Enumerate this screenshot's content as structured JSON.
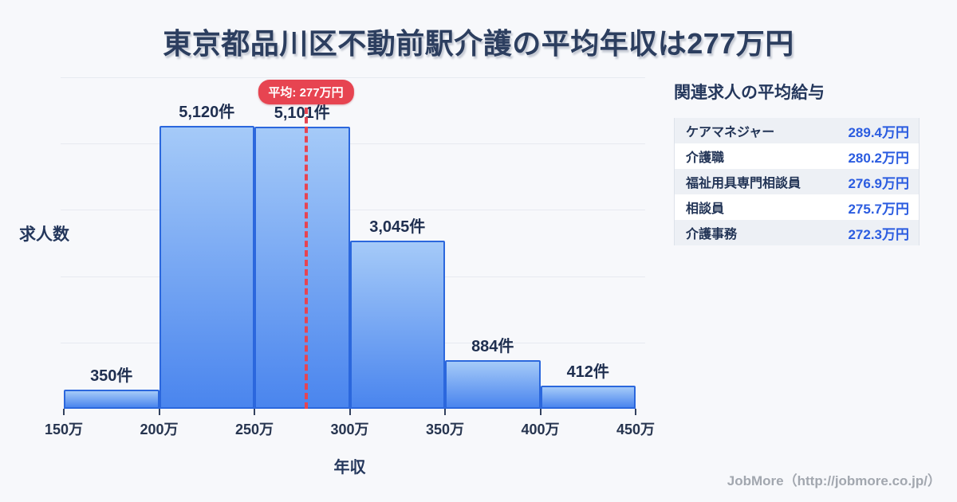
{
  "title": "東京都品川区不動前駅介護の平均年収は277万円",
  "colors": {
    "background": "#f7f8fb",
    "navy_text": "#24375c",
    "bar_gradient_top": "#a5caf8",
    "bar_gradient_bottom": "#4a85ee",
    "bar_border": "#2b67dd",
    "average_red": "#e74451",
    "value_blue": "#2b5ce0",
    "gridline": "#e7eaf0",
    "row_stripe": "#edf0f5"
  },
  "chart_data": {
    "type": "bar",
    "title": "東京都品川区不動前駅介護の平均年収は277万円",
    "categories": [
      "150万-200万",
      "200万-250万",
      "250万-300万",
      "300万-350万",
      "350万-400万",
      "400万-450万"
    ],
    "values": [
      350,
      5120,
      5101,
      3045,
      884,
      412
    ],
    "bar_labels": [
      "350件",
      "5,120件",
      "5,101件",
      "3,045件",
      "884件",
      "412件"
    ],
    "bin_edge_labels": [
      "150万",
      "200万",
      "250万",
      "300万",
      "350万",
      "400万",
      "450万"
    ],
    "x_range": [
      150,
      450
    ],
    "xlabel": "年収",
    "ylabel": "求人数",
    "ylim": [
      0,
      6000
    ],
    "grid": "horizontal",
    "gridline_count": 5,
    "legend": "none",
    "average": {
      "value": 277,
      "label": "平均: 277万円"
    }
  },
  "side_panel": {
    "heading": "関連求人の平均給与",
    "rows": [
      {
        "label": "ケアマネジャー",
        "value": "289.4万円"
      },
      {
        "label": "介護職",
        "value": "280.2万円"
      },
      {
        "label": "福祉用具専門相談員",
        "value": "276.9万円"
      },
      {
        "label": "相談員",
        "value": "275.7万円"
      },
      {
        "label": "介護事務",
        "value": "272.3万円"
      }
    ]
  },
  "footer": {
    "credit": "JobMore（http://jobmore.co.jp/）"
  }
}
